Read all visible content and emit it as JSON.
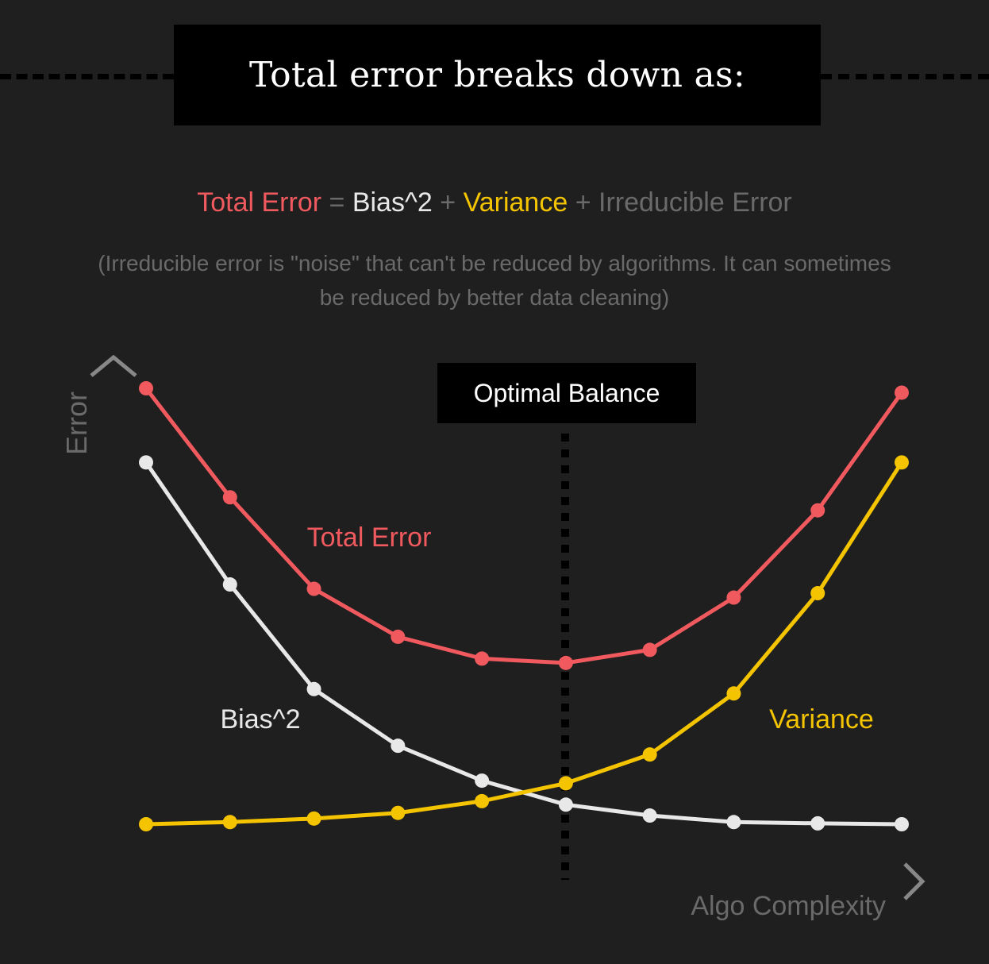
{
  "header": {
    "title": "Total error breaks down as:"
  },
  "formula": {
    "total": "Total Error",
    "eq": " = ",
    "bias": "Bias^2",
    "plus1": " + ",
    "variance": "Variance",
    "plus2": " + ",
    "irreducible": "Irreducible Error"
  },
  "note": "(Irreducible error is \"noise\" that can't be reduced by algorithms. It can sometimes be reduced by better data cleaning)",
  "colors": {
    "total": "#f05a5f",
    "bias": "#e8e8e8",
    "variance": "#f5c400",
    "muted": "#6a6a6a",
    "background": "#1f1f1f"
  },
  "chart_data": {
    "type": "line",
    "xlabel": "Algo Complexity",
    "ylabel": "Error",
    "x": [
      1,
      2,
      3,
      4,
      5,
      6,
      7,
      8,
      9,
      10
    ],
    "ylim": [
      0,
      100
    ],
    "series": [
      {
        "name": "Total Error",
        "color": "#f05a5f",
        "values": [
          100,
          75,
          54,
          43,
          38,
          37,
          40,
          52,
          72,
          99
        ]
      },
      {
        "name": "Bias^2",
        "color": "#e8e8e8",
        "values": [
          83,
          55,
          31,
          18,
          10,
          4.5,
          2,
          0.5,
          0.2,
          0
        ]
      },
      {
        "name": "Variance",
        "color": "#f5c400",
        "values": [
          0,
          0.5,
          1.3,
          2.6,
          5.3,
          9.4,
          16,
          30,
          53,
          83
        ]
      }
    ],
    "annotation": {
      "label": "Optimal Balance",
      "x": 6
    },
    "grid": false
  }
}
